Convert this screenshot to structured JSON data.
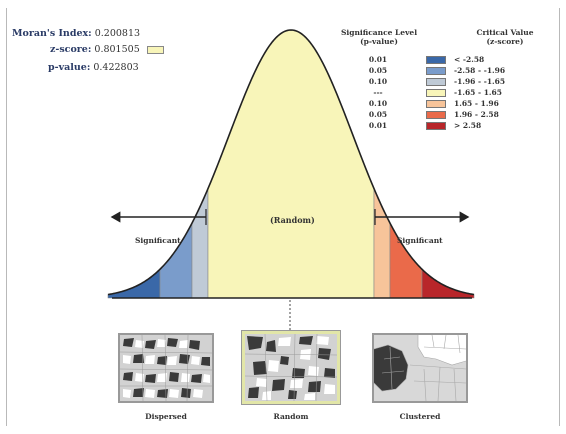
{
  "stats": {
    "morans_label": "Moran's Index:",
    "morans_value": "0.200813",
    "z_label": "z-score:",
    "z_value": "0.801505",
    "p_label": "p-value:",
    "p_value": "0.422803"
  },
  "legend": {
    "sig_title": "Significance Level",
    "sig_sub": "(p-value)",
    "crit_title": "Critical Value",
    "crit_sub": "(z-score)",
    "rows": [
      {
        "p": "0.01",
        "color": "#3a68a8",
        "range": "< -2.58"
      },
      {
        "p": "0.05",
        "color": "#7a9ccb",
        "range": "-2.58 - -1.96"
      },
      {
        "p": "0.10",
        "color": "#bfcad6",
        "range": "-1.96 - -1.65"
      },
      {
        "p": "---",
        "color": "#f8f5b9",
        "range": "-1.65 - 1.65"
      },
      {
        "p": "0.10",
        "color": "#f7c49a",
        "range": "1.65 - 1.96"
      },
      {
        "p": "0.05",
        "color": "#ea6a4a",
        "range": "1.96 - 2.58"
      },
      {
        "p": "0.01",
        "color": "#b8262a",
        "range": "> 2.58"
      }
    ]
  },
  "curve": {
    "center_label": "(Random)",
    "left_label": "Significant",
    "right_label": "Significant",
    "colors": {
      "center": "#f8f5b9",
      "left_outer": "#3a68a8",
      "left_mid": "#7a9ccb",
      "left_inner": "#bfcad6",
      "right_inner": "#f7c49a",
      "right_mid": "#ea6a4a",
      "right_outer": "#b8262a"
    }
  },
  "patterns": [
    {
      "caption": "Dispersed"
    },
    {
      "caption": "Random"
    },
    {
      "caption": "Clustered"
    }
  ]
}
